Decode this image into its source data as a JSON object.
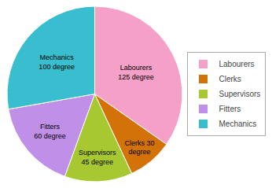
{
  "chart_data": {
    "type": "pie",
    "categories": [
      "Labourers",
      "Clerks",
      "Supervisors",
      "Fitters",
      "Mechanics"
    ],
    "values": [
      125,
      30,
      45,
      60,
      100
    ],
    "value_labels": [
      "Labourers\n125 degree",
      "Clerks 30\ndegree",
      "Supervisors\n45 degree",
      "Fitters\n60 degree",
      "Mechanics\n100 degree"
    ],
    "colors": [
      "#F4A0C8",
      "#D4720A",
      "#A8C832",
      "#C090E8",
      "#38BECE"
    ],
    "data_labels": true,
    "legend": "right"
  }
}
